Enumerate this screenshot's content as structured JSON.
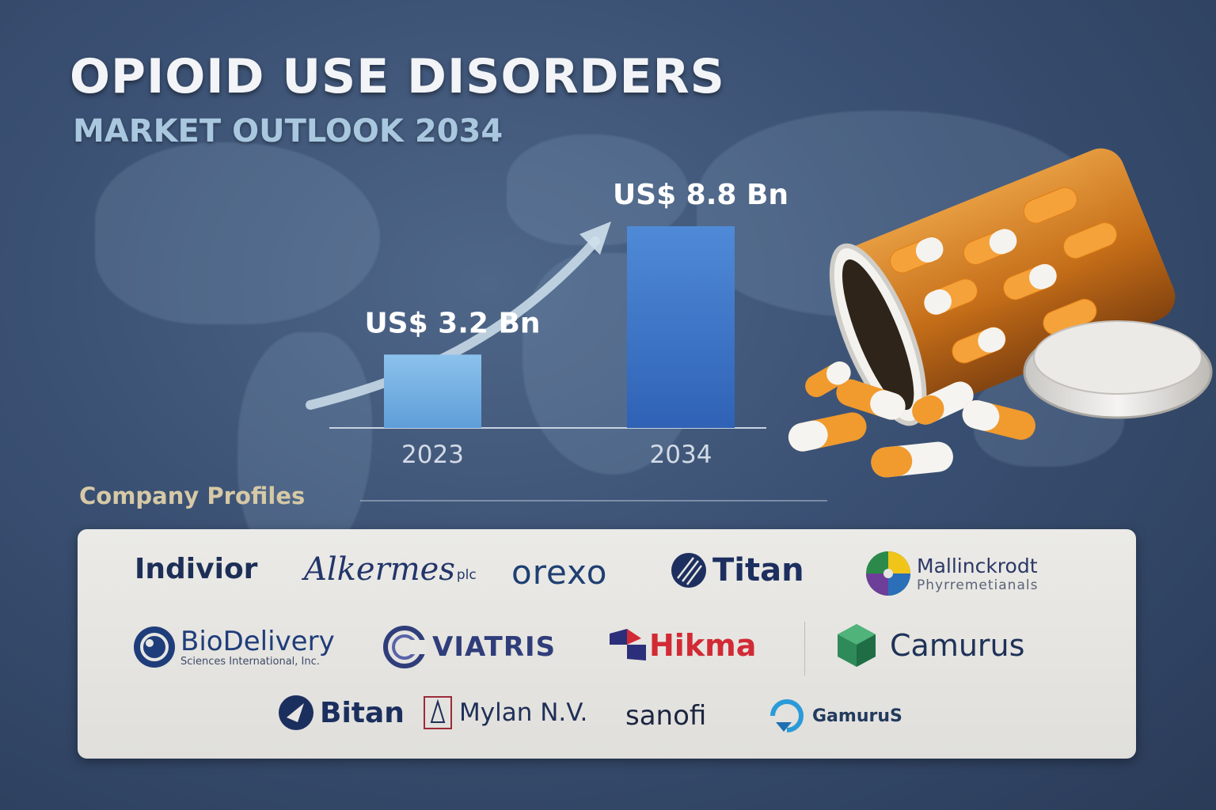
{
  "title": "OPIOID USE DISORDERS",
  "subtitle": "MARKET OUTLOOK 2034",
  "chart_data": {
    "type": "bar",
    "categories": [
      "2023",
      "2034"
    ],
    "values": [
      3.2,
      8.8
    ],
    "value_labels": [
      "US$ 3.2 Bn",
      "US$ 8.8 Bn"
    ],
    "units": "US$ Bn",
    "ylim": [
      0,
      9
    ],
    "grid": false,
    "colors": {
      "bar_2023": "#78b4e4",
      "bar_2034": "#3f76c9",
      "trend_arrow": "#cfe0ec"
    }
  },
  "company_profiles": {
    "heading": "Company Profiles",
    "logos": [
      {
        "name": "Indivior",
        "color": "#1d2f57"
      },
      {
        "name": "Alkermes",
        "suffix": "plc",
        "color": "#23356a"
      },
      {
        "name": "orexo",
        "color": "#1e3f72"
      },
      {
        "name": "Titan",
        "color": "#1d2f5f"
      },
      {
        "name": "Mallinckrodt",
        "tagline": "Phyrremetianals",
        "color": "#2c3866"
      },
      {
        "name": "BioDelivery",
        "tagline": "Sciences International, Inc.",
        "color": "#1f3d7a"
      },
      {
        "name": "VIATRIS",
        "color": "#2f3d7a"
      },
      {
        "name": "Hikma",
        "color": "#d22a35"
      },
      {
        "name": "Camurus",
        "color": "#1e3257"
      },
      {
        "name": "Bitan",
        "color": "#1b2f5e"
      },
      {
        "name": "Mylan N.V.",
        "color": "#1f2f58"
      },
      {
        "name": "sanofi",
        "color": "#1c2540"
      },
      {
        "name": "GamuruS",
        "color": "#233a5e"
      }
    ]
  }
}
